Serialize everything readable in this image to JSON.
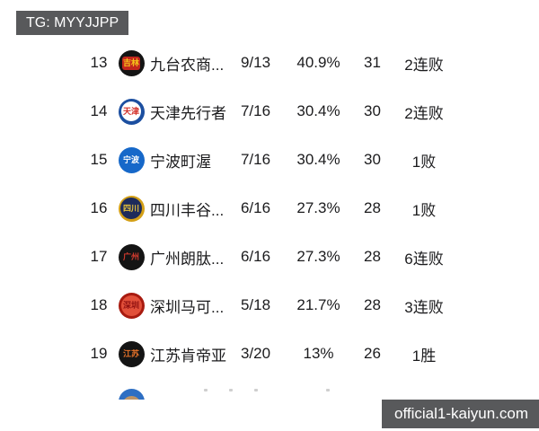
{
  "badge": {
    "label": "TG: MYYJJPP"
  },
  "watermark": {
    "label": "official1-kaiyun.com"
  },
  "colors": {
    "badge_bg": "#58595b",
    "watermark_bg": "#58595b",
    "row_text": "#1b1b1d",
    "page_bg": "#ffffff"
  },
  "table": {
    "columns": [
      "rank",
      "logo",
      "team",
      "record",
      "win_pct",
      "points",
      "streak"
    ],
    "rows": [
      {
        "rank": "13",
        "team": "九台农商...",
        "record": "9/13",
        "pct": "40.9%",
        "points": "31",
        "streak": "2连败",
        "logo": {
          "text": "吉林",
          "bg": "#141414",
          "fg": "#f5c51a",
          "core": "#c3261d",
          "core_w": 20,
          "core_h": 15,
          "core_r": 3
        }
      },
      {
        "rank": "14",
        "team": "天津先行者",
        "record": "7/16",
        "pct": "30.4%",
        "points": "30",
        "streak": "2连败",
        "logo": {
          "text": "天津",
          "bg": "#1c4fa0",
          "fg": "#d22d26",
          "core": "#ffffff",
          "core_w": 22,
          "core_h": 22,
          "core_r": 11
        }
      },
      {
        "rank": "15",
        "team": "宁波町渥",
        "record": "7/16",
        "pct": "30.4%",
        "points": "30",
        "streak": "1败",
        "logo": {
          "text": "宁波",
          "bg": "#1668c9",
          "fg": "#ffffff"
        }
      },
      {
        "rank": "16",
        "team": "四川丰谷...",
        "record": "6/16",
        "pct": "27.3%",
        "points": "28",
        "streak": "1败",
        "logo": {
          "text": "四川",
          "bg": "#d4a017",
          "fg": "#e8c33a",
          "core": "#1d2b5b",
          "core_w": 24,
          "core_h": 24,
          "core_r": 12
        }
      },
      {
        "rank": "17",
        "team": "广州朗肽...",
        "record": "6/16",
        "pct": "27.3%",
        "points": "28",
        "streak": "6连败",
        "logo": {
          "text": "广州",
          "bg": "#141414",
          "fg": "#d03a2e"
        }
      },
      {
        "rank": "18",
        "team": "深圳马可...",
        "record": "5/18",
        "pct": "21.7%",
        "points": "28",
        "streak": "3连败",
        "logo": {
          "text": "深圳",
          "bg": "#a81b10",
          "fg": "#8f1010",
          "core": "#e2503a",
          "core_w": 23,
          "core_h": 23,
          "core_r": 12
        }
      },
      {
        "rank": "19",
        "team": "江苏肯帝亚",
        "record": "3/20",
        "pct": "13%",
        "points": "26",
        "streak": "1胜",
        "logo": {
          "text": "江苏",
          "bg": "#141414",
          "fg": "#e8732a"
        }
      }
    ],
    "partial_row": {
      "logo": {
        "bg": "#2e6fc3",
        "core": "#bf9566"
      }
    }
  }
}
